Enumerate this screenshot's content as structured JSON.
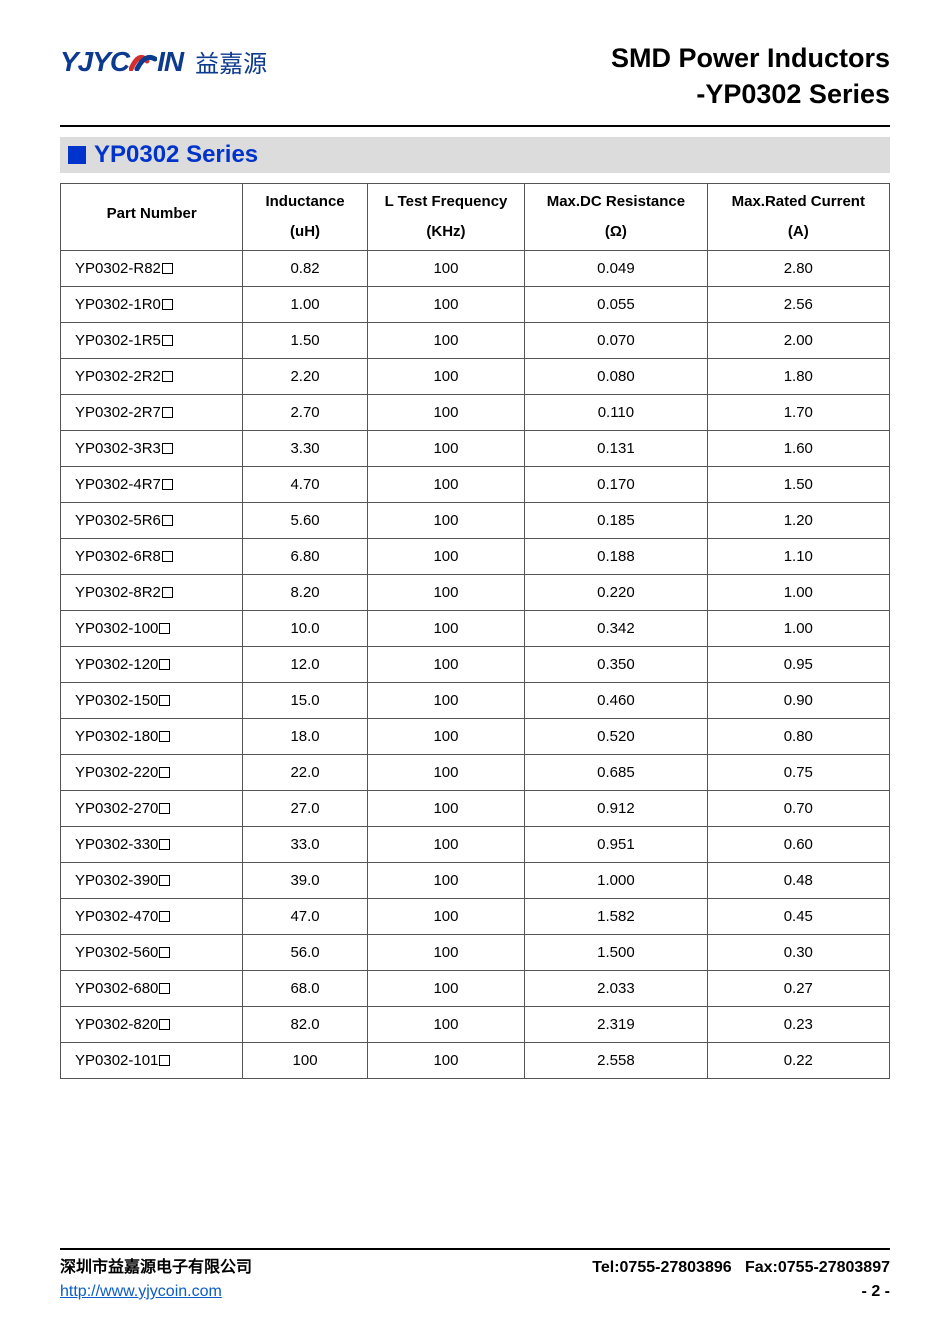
{
  "logo": {
    "brand_latin": "YJYC   IN",
    "brand_cn": "益嘉源",
    "brand_color": "#0b3a8f",
    "swoosh_colors": [
      "#d42e2e",
      "#0b3a8f"
    ]
  },
  "title": {
    "line1": "SMD Power Inductors",
    "line2": "-YP0302 Series"
  },
  "section": {
    "label": "YP0302 Series",
    "square_color": "#0033cc",
    "bar_color": "#dcdcdc",
    "title_color": "#0033cc"
  },
  "table": {
    "columns": [
      {
        "main": "Part Number",
        "unit": ""
      },
      {
        "main": "Inductance",
        "unit": "(uH)"
      },
      {
        "main": "L Test Frequency",
        "unit": "(KHz)"
      },
      {
        "main": "Max.DC Resistance",
        "unit": "(Ω)"
      },
      {
        "main": "Max.Rated Current",
        "unit": "(A)"
      }
    ],
    "col_widths_pct": [
      22,
      15,
      19,
      22,
      22
    ],
    "border_color": "#555555",
    "font_size_pt": 11,
    "rows": [
      [
        "YP0302-R82",
        "0.82",
        "100",
        "0.049",
        "2.80"
      ],
      [
        "YP0302-1R0",
        "1.00",
        "100",
        "0.055",
        "2.56"
      ],
      [
        "YP0302-1R5",
        "1.50",
        "100",
        "0.070",
        "2.00"
      ],
      [
        "YP0302-2R2",
        "2.20",
        "100",
        "0.080",
        "1.80"
      ],
      [
        "YP0302-2R7",
        "2.70",
        "100",
        "0.110",
        "1.70"
      ],
      [
        "YP0302-3R3",
        "3.30",
        "100",
        "0.131",
        "1.60"
      ],
      [
        "YP0302-4R7",
        "4.70",
        "100",
        "0.170",
        "1.50"
      ],
      [
        "YP0302-5R6",
        "5.60",
        "100",
        "0.185",
        "1.20"
      ],
      [
        "YP0302-6R8",
        "6.80",
        "100",
        "0.188",
        "1.10"
      ],
      [
        "YP0302-8R2",
        "8.20",
        "100",
        "0.220",
        "1.00"
      ],
      [
        "YP0302-100",
        "10.0",
        "100",
        "0.342",
        "1.00"
      ],
      [
        "YP0302-120",
        "12.0",
        "100",
        "0.350",
        "0.95"
      ],
      [
        "YP0302-150",
        "15.0",
        "100",
        "0.460",
        "0.90"
      ],
      [
        "YP0302-180",
        "18.0",
        "100",
        "0.520",
        "0.80"
      ],
      [
        "YP0302-220",
        "22.0",
        "100",
        "0.685",
        "0.75"
      ],
      [
        "YP0302-270",
        "27.0",
        "100",
        "0.912",
        "0.70"
      ],
      [
        "YP0302-330",
        "33.0",
        "100",
        "0.951",
        "0.60"
      ],
      [
        "YP0302-390",
        "39.0",
        "100",
        "1.000",
        "0.48"
      ],
      [
        "YP0302-470",
        "47.0",
        "100",
        "1.582",
        "0.45"
      ],
      [
        "YP0302-560",
        "56.0",
        "100",
        "1.500",
        "0.30"
      ],
      [
        "YP0302-680",
        "68.0",
        "100",
        "2.033",
        "0.27"
      ],
      [
        "YP0302-820",
        "82.0",
        "100",
        "2.319",
        "0.23"
      ],
      [
        "YP0302-101",
        "100",
        "100",
        "2.558",
        "0.22"
      ]
    ]
  },
  "footer": {
    "company_cn": "深圳市益嘉源电子有限公司",
    "url": "http://www.yjycoin.com",
    "tel": "Tel:0755-27803896",
    "fax": "Fax:0755-27803897",
    "page": "- 2 -"
  },
  "colors": {
    "background": "#ffffff",
    "text": "#000000",
    "link": "#0b5cc4"
  }
}
